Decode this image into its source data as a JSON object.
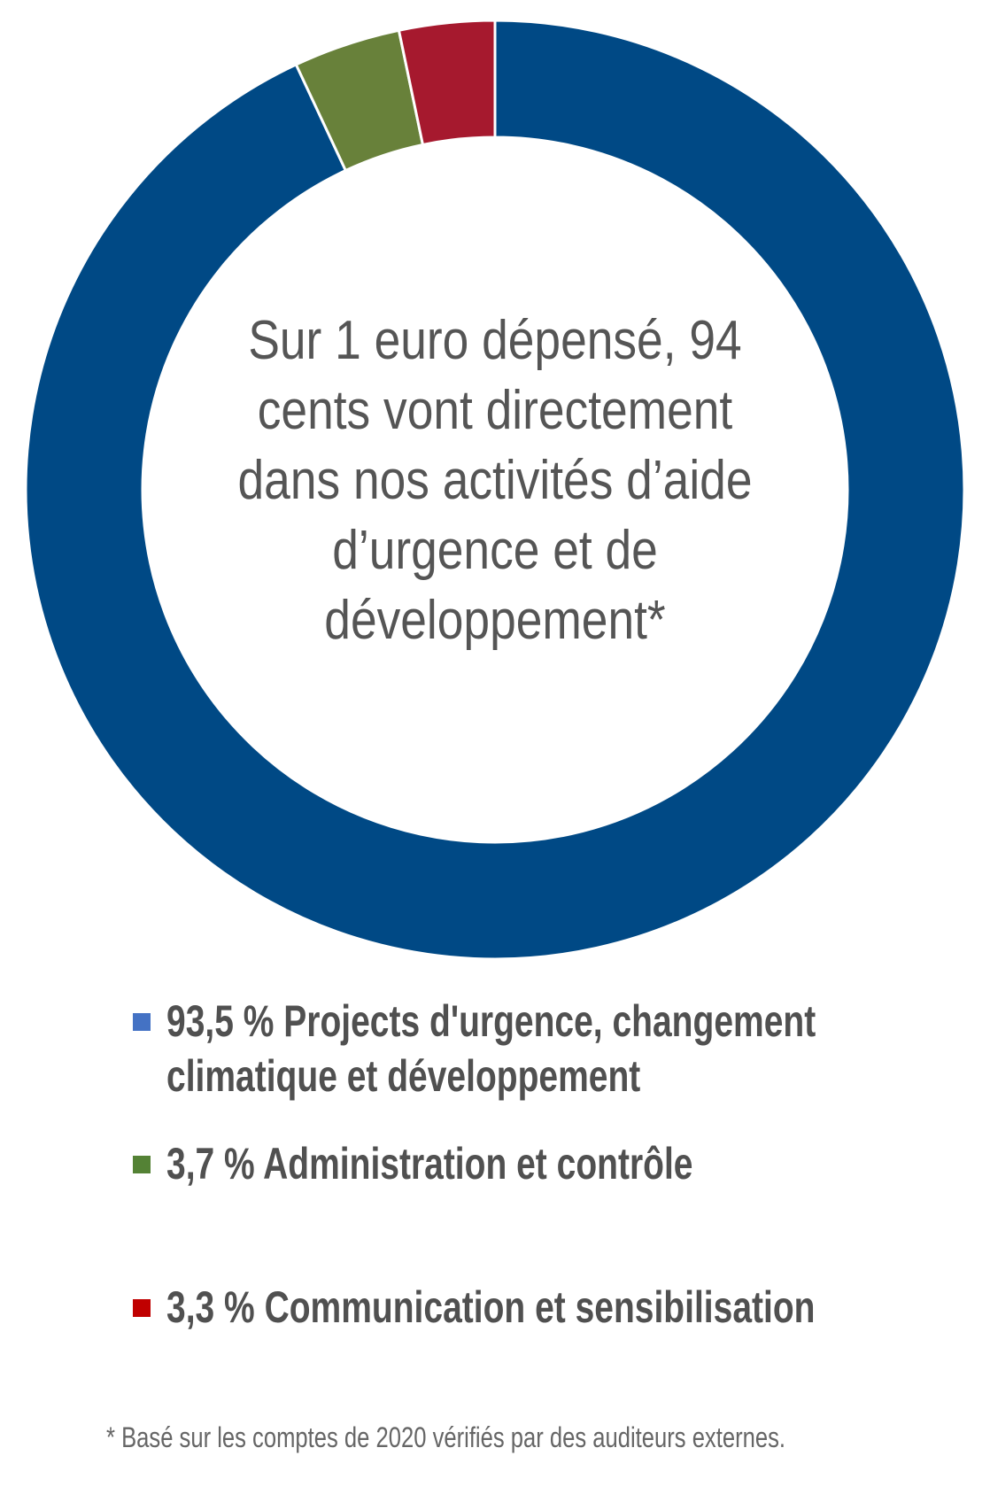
{
  "chart_data": {
    "type": "pie",
    "variant": "donut",
    "center_text": [
      "Sur 1 euro dépensé, 94",
      "cents vont directement",
      "dans nos activités d’aide",
      "d’urgence et de",
      "développement*"
    ],
    "slices": [
      {
        "label": "93,5 % Projects d'urgence, changement climatique et développement",
        "label_lines": [
          "93,5 % Projects d'urgence, changement",
          "climatique et développement"
        ],
        "value": 93.5,
        "color": "#004985",
        "legend_color": "#4472C4"
      },
      {
        "label": "3,7 % Administration et contrôle",
        "label_lines": [
          "3,7 % Administration et contrôle"
        ],
        "value": 3.7,
        "color": "#68813A",
        "legend_color": "#548235"
      },
      {
        "label": "3,3 % Communication et sensibilisation",
        "label_lines": [
          "3,3 % Communication et sensibilisation"
        ],
        "value": 3.3,
        "color": "#A6192E",
        "legend_color": "#C00000"
      }
    ],
    "legend_placement": "bottom",
    "footnote": "* Basé sur les comptes de 2020 vérifiés par des auditeurs externes."
  }
}
